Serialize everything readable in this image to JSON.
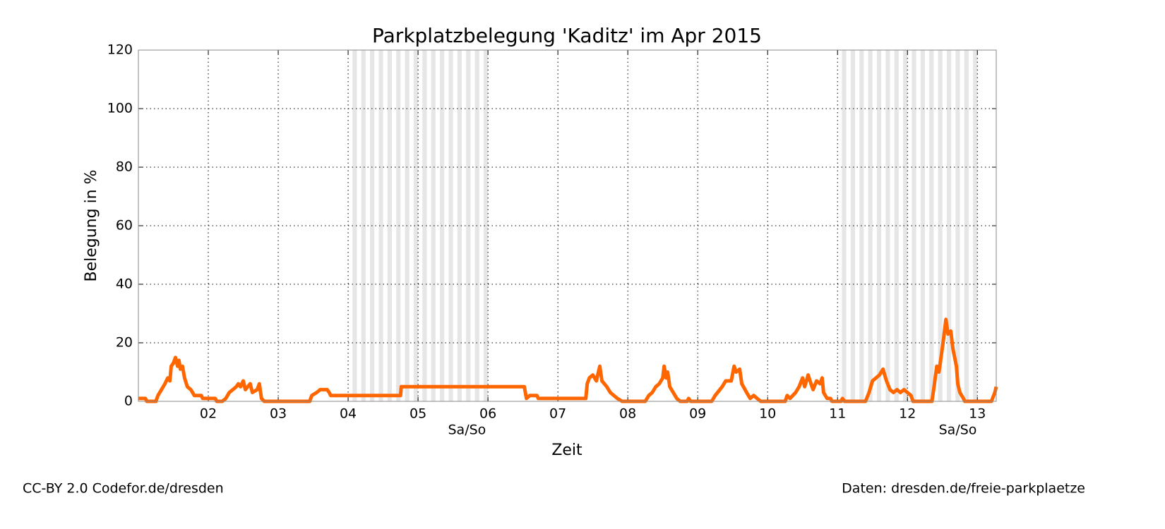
{
  "chart_data": {
    "type": "line",
    "title": "Parkplatzbelegung 'Kaditz' im Apr 2015",
    "xlabel": "Zeit",
    "ylabel": "Belegung in %",
    "color": "#ff6600",
    "xlim": [
      1,
      13.27
    ],
    "ylim": [
      0,
      120
    ],
    "xticks": [
      {
        "value": 2,
        "label": "02"
      },
      {
        "value": 3,
        "label": "03"
      },
      {
        "value": 4,
        "label": "04"
      },
      {
        "value": 5,
        "label": "05"
      },
      {
        "value": 6,
        "label": "06"
      },
      {
        "value": 7,
        "label": "07"
      },
      {
        "value": 8,
        "label": "08"
      },
      {
        "value": 9,
        "label": "09"
      },
      {
        "value": 10,
        "label": "10"
      },
      {
        "value": 11,
        "label": "11"
      },
      {
        "value": 12,
        "label": "12"
      },
      {
        "value": 13,
        "label": "13"
      }
    ],
    "yticks": [
      0,
      20,
      40,
      60,
      80,
      100,
      120
    ],
    "grid": true,
    "shaded_ranges": [
      [
        4,
        6
      ],
      [
        11,
        13
      ]
    ],
    "annotations": [
      {
        "text": "Sa/So",
        "x": 5.7
      },
      {
        "text": "Sa/So",
        "x": 12.72
      }
    ],
    "x": [
      1.0,
      1.1,
      1.12,
      1.25,
      1.28,
      1.33,
      1.38,
      1.42,
      1.45,
      1.47,
      1.5,
      1.53,
      1.56,
      1.58,
      1.6,
      1.63,
      1.66,
      1.7,
      1.75,
      1.8,
      1.9,
      1.92,
      2.1,
      2.12,
      2.2,
      2.25,
      2.3,
      2.35,
      2.4,
      2.43,
      2.46,
      2.5,
      2.53,
      2.6,
      2.63,
      2.7,
      2.73,
      2.76,
      2.8,
      3.45,
      3.48,
      3.55,
      3.6,
      3.7,
      3.73,
      3.75,
      4.75,
      4.76,
      6.52,
      6.55,
      6.6,
      6.7,
      6.72,
      7.4,
      7.42,
      7.45,
      7.5,
      7.55,
      7.6,
      7.63,
      7.7,
      7.75,
      7.85,
      7.92,
      8.25,
      8.3,
      8.35,
      8.4,
      8.45,
      8.5,
      8.52,
      8.55,
      8.57,
      8.6,
      8.65,
      8.7,
      8.75,
      8.85,
      8.87,
      8.9,
      9.2,
      9.25,
      9.35,
      9.4,
      9.48,
      9.52,
      9.55,
      9.6,
      9.63,
      9.7,
      9.75,
      9.8,
      9.85,
      9.9,
      10.25,
      10.28,
      10.32,
      10.4,
      10.45,
      10.5,
      10.53,
      10.58,
      10.62,
      10.65,
      10.7,
      10.75,
      10.78,
      10.8,
      10.85,
      10.9,
      10.92,
      11.05,
      11.07,
      11.1,
      11.4,
      11.45,
      11.5,
      11.55,
      11.6,
      11.65,
      11.7,
      11.75,
      11.8,
      11.85,
      11.9,
      11.95,
      12.0,
      12.05,
      12.08,
      12.35,
      12.38,
      12.42,
      12.45,
      12.48,
      12.52,
      12.55,
      12.58,
      12.62,
      12.65,
      12.7,
      12.72,
      12.75,
      12.8,
      12.82,
      13.2,
      13.25,
      13.27
    ],
    "values": [
      1,
      1,
      0,
      0,
      2,
      4,
      6,
      8,
      7,
      12,
      13,
      15,
      12,
      14,
      11,
      12,
      8,
      5,
      4,
      2,
      2,
      1,
      1,
      0,
      0,
      1,
      3,
      4,
      5,
      6,
      5,
      7,
      4,
      6,
      3,
      4,
      6,
      1,
      0,
      0,
      2,
      3,
      4,
      4,
      3,
      2,
      2,
      5,
      5,
      1,
      2,
      2,
      1,
      1,
      6,
      8,
      9,
      7,
      12,
      7,
      5,
      3,
      1,
      0,
      0,
      2,
      3,
      5,
      6,
      8,
      12,
      8,
      10,
      5,
      3,
      1,
      0,
      0,
      1,
      0,
      0,
      2,
      5,
      7,
      7,
      12,
      10,
      11,
      6,
      3,
      1,
      2,
      1,
      0,
      0,
      2,
      1,
      3,
      5,
      8,
      5,
      9,
      6,
      4,
      7,
      6,
      8,
      3,
      1,
      1,
      0,
      0,
      1,
      0,
      0,
      3,
      7,
      8,
      9,
      11,
      7,
      4,
      3,
      4,
      3,
      4,
      3,
      2,
      0,
      0,
      5,
      12,
      10,
      15,
      22,
      28,
      23,
      24,
      18,
      12,
      6,
      3,
      1,
      0,
      0,
      3,
      5
    ]
  },
  "footer": {
    "left": "CC-BY 2.0 Codefor.de/dresden",
    "right": "Daten: dresden.de/freie-parkplaetze"
  }
}
